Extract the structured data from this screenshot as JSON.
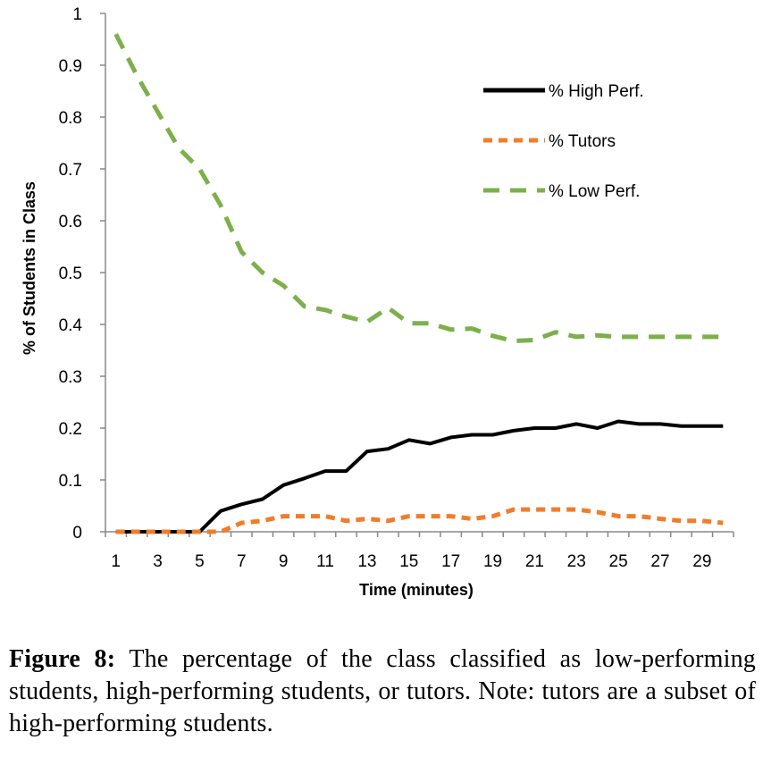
{
  "chart_data": {
    "type": "line",
    "title": "",
    "xlabel": "Time (minutes)",
    "ylabel": "% of Students in Class",
    "x": [
      1,
      2,
      3,
      4,
      5,
      6,
      7,
      8,
      9,
      10,
      11,
      12,
      13,
      14,
      15,
      16,
      17,
      18,
      19,
      20,
      21,
      22,
      23,
      24,
      25,
      26,
      27,
      28,
      29,
      30
    ],
    "xticks": [
      1,
      3,
      5,
      7,
      9,
      11,
      13,
      15,
      17,
      19,
      21,
      23,
      25,
      27,
      29
    ],
    "xlim": [
      0.5,
      30.5
    ],
    "ylim": [
      0,
      1
    ],
    "yticks": [
      "0",
      "0.1",
      "0.2",
      "0.3",
      "0.4",
      "0.5",
      "0.6",
      "0.7",
      "0.8",
      "0.9",
      "1"
    ],
    "grid": false,
    "legend_position": "top-right",
    "series": [
      {
        "name": "% High Perf.",
        "color": "#000000",
        "dash": "solid",
        "values": [
          0,
          0,
          0,
          0,
          0,
          0.04,
          0.053,
          0.063,
          0.09,
          0.103,
          0.117,
          0.117,
          0.155,
          0.16,
          0.177,
          0.17,
          0.182,
          0.187,
          0.187,
          0.195,
          0.2,
          0.2,
          0.208,
          0.2,
          0.213,
          0.208,
          0.208,
          0.204,
          0.204,
          0.204
        ]
      },
      {
        "name": "% Tutors",
        "color": "#f07d2a",
        "dash": "short",
        "values": [
          0,
          0,
          0,
          0,
          0,
          0,
          0.017,
          0.021,
          0.03,
          0.03,
          0.03,
          0.021,
          0.025,
          0.021,
          0.03,
          0.03,
          0.03,
          0.025,
          0.03,
          0.043,
          0.043,
          0.043,
          0.043,
          0.038,
          0.03,
          0.03,
          0.025,
          0.021,
          0.021,
          0.017
        ]
      },
      {
        "name": "% Low Perf.",
        "color": "#7cb04a",
        "dash": "long",
        "values": [
          0.96,
          0.88,
          0.81,
          0.74,
          0.7,
          0.63,
          0.54,
          0.5,
          0.475,
          0.435,
          0.428,
          0.415,
          0.405,
          0.432,
          0.402,
          0.402,
          0.39,
          0.392,
          0.378,
          0.368,
          0.37,
          0.385,
          0.376,
          0.379,
          0.376,
          0.376,
          0.376,
          0.376,
          0.376,
          0.376
        ]
      }
    ]
  },
  "caption": {
    "label": "Figure 8:",
    "text": "The percentage of the class classified as low-performing students, high-performing students, or tutors. Note: tutors are a subset of high-performing students."
  }
}
